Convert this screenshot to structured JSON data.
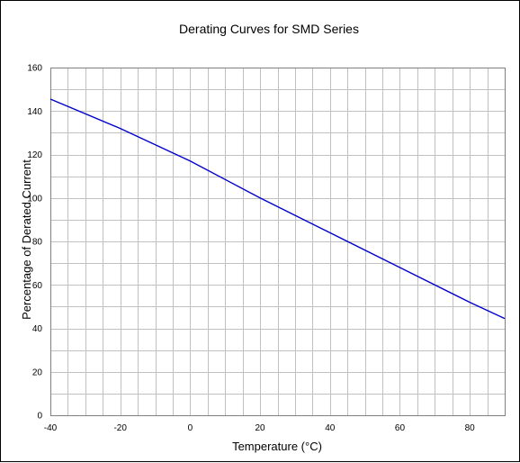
{
  "chart_data": {
    "type": "line",
    "title": "Derating Curves for SMD Series",
    "xlabel": "Temperature (°C)",
    "ylabel": "Percentage of Derated Current",
    "xlim": [
      -40,
      90
    ],
    "ylim": [
      0,
      160
    ],
    "xticks": [
      -40,
      -20,
      0,
      20,
      40,
      60,
      80
    ],
    "yticks": [
      0,
      20,
      40,
      60,
      80,
      100,
      120,
      140,
      160
    ],
    "x_minor_step": 5,
    "y_minor_step": 10,
    "grid": true,
    "legend": "none",
    "series": [
      {
        "color": "#0000cc",
        "x": [
          -40,
          -20,
          0,
          20,
          40,
          60,
          80,
          90
        ],
        "y": [
          145.5,
          132,
          117,
          100,
          84,
          68,
          52,
          44.5
        ]
      }
    ]
  }
}
